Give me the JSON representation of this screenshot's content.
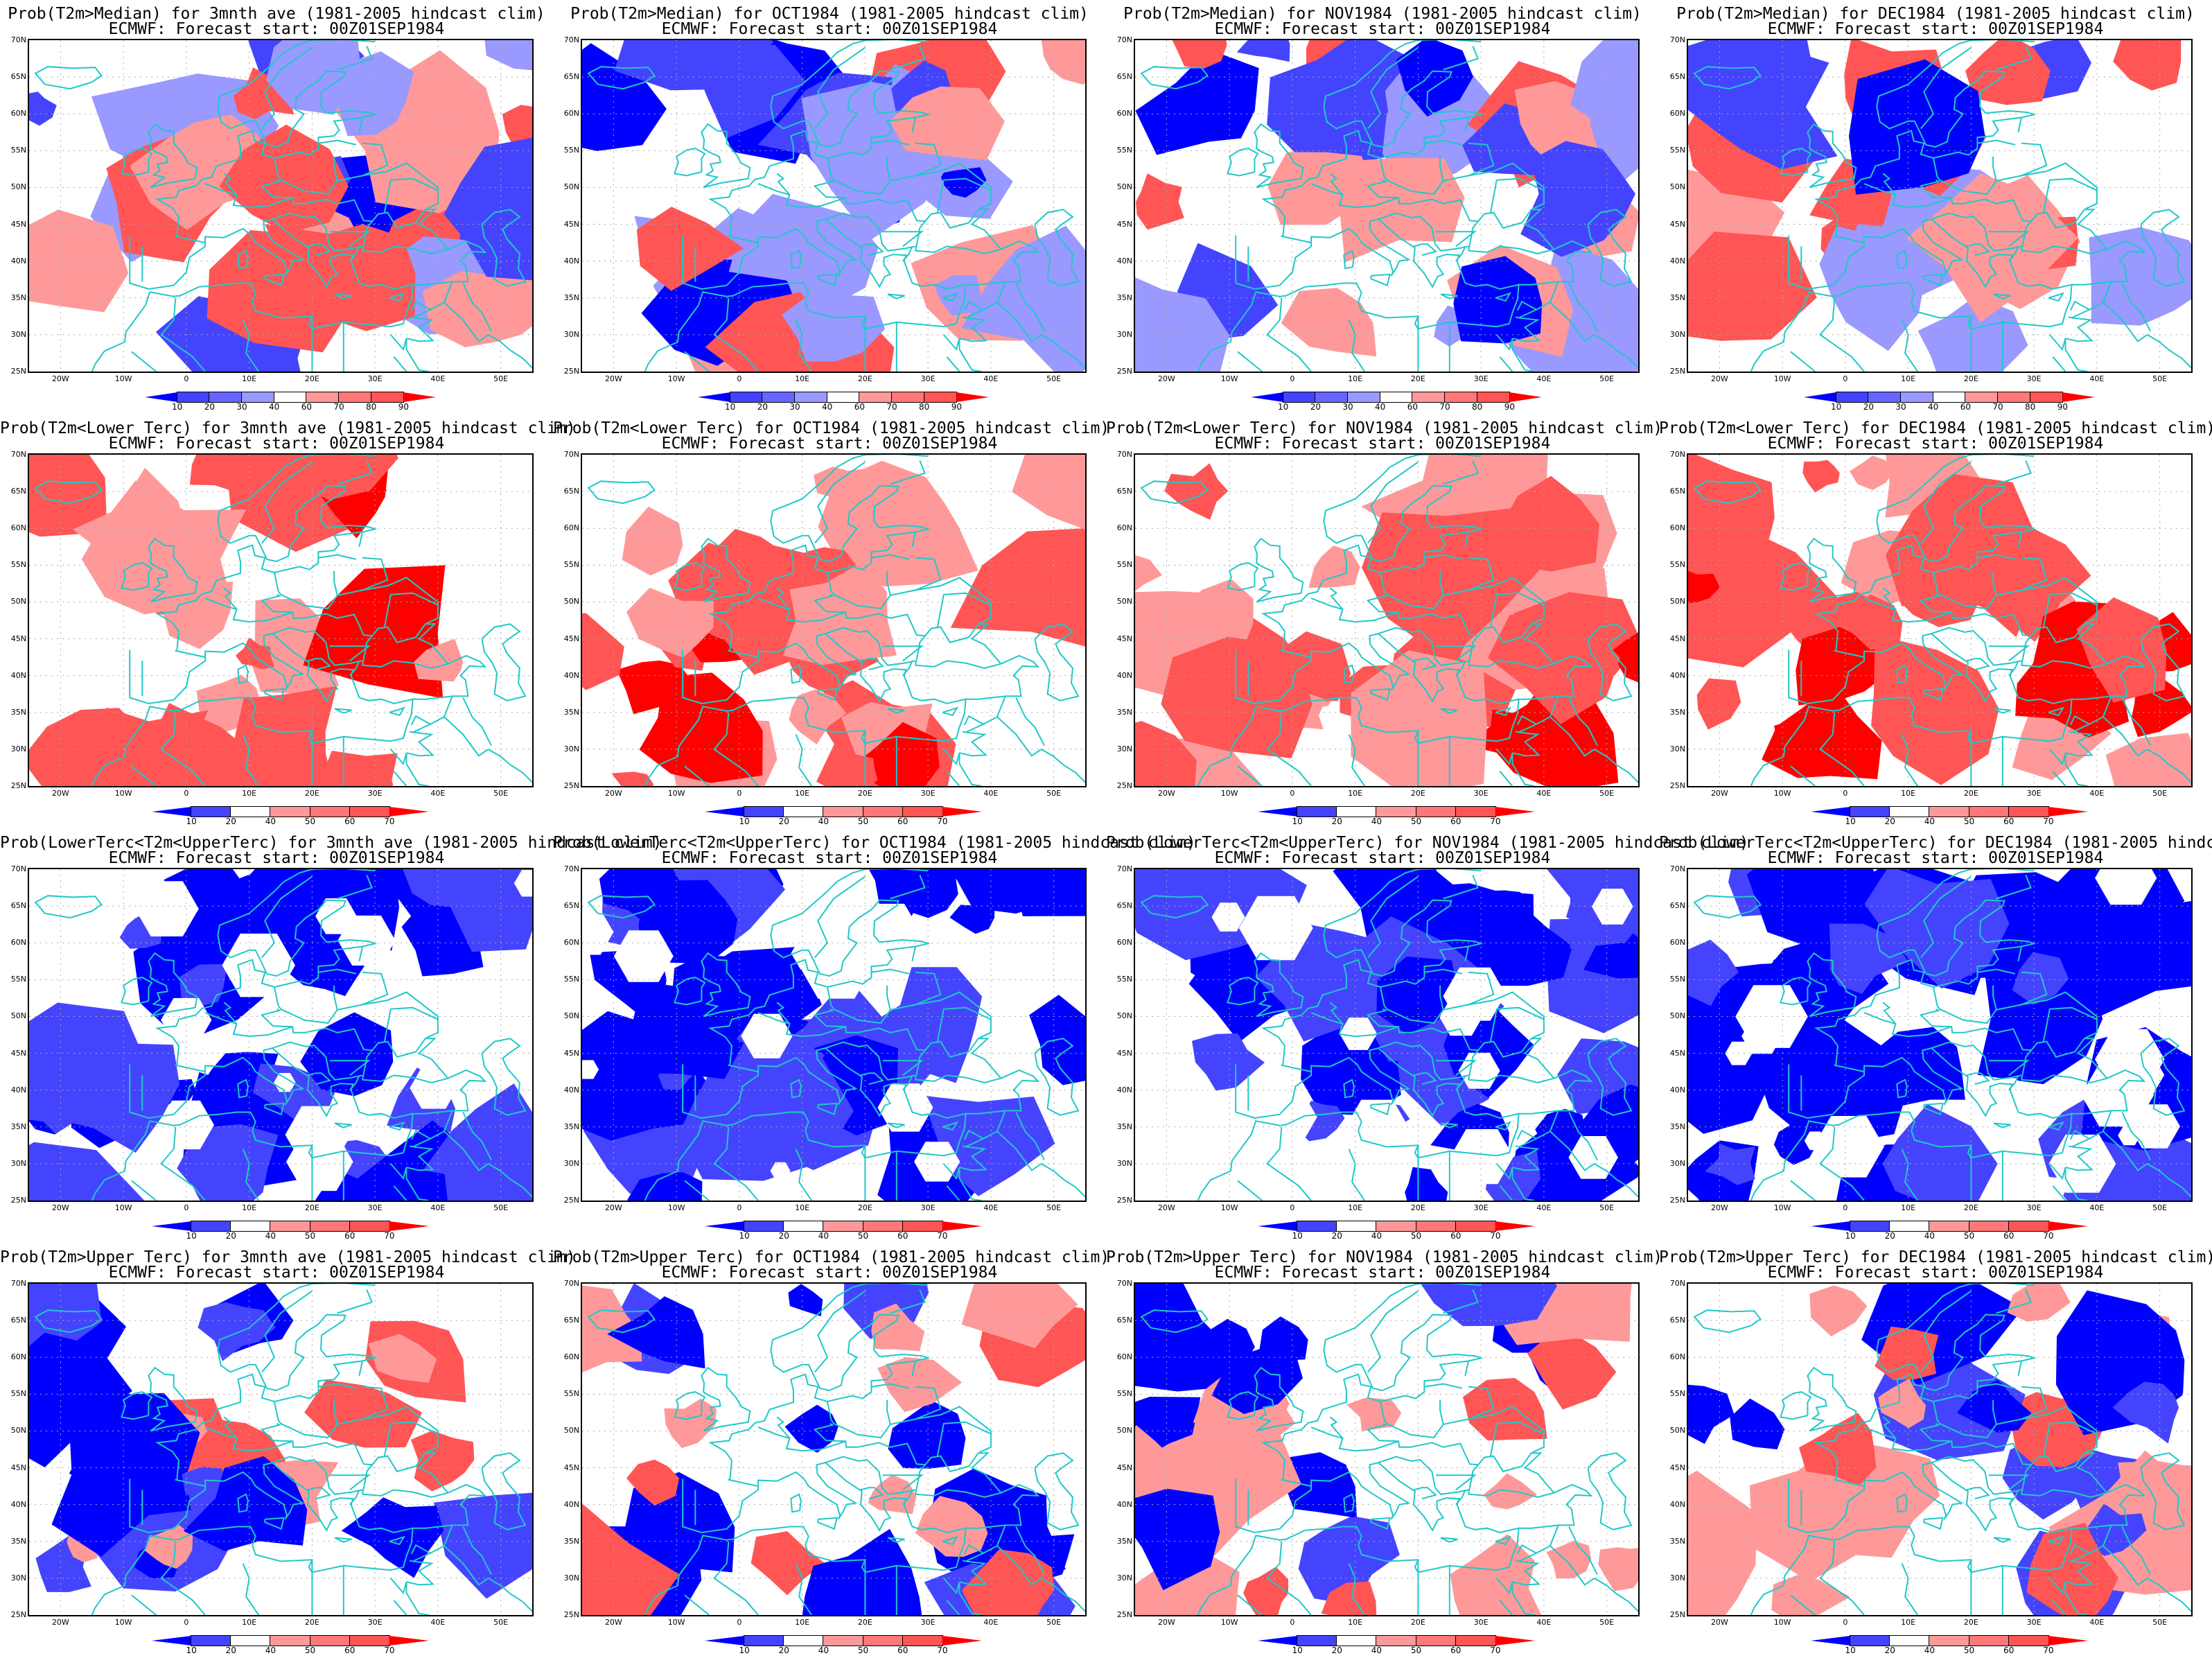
{
  "map_data": {
    "region": "Europe / North Atlantic / Mediterranean",
    "lon_range": [
      -25,
      55
    ],
    "lat_range": [
      25,
      70
    ],
    "y_ticks": [
      "70N",
      "65N",
      "60N",
      "55N",
      "50N",
      "45N",
      "40N",
      "35N",
      "30N",
      "25N"
    ],
    "x_ticks": [
      "20W",
      "10W",
      "0",
      "10E",
      "20E",
      "30E",
      "40E",
      "50E"
    ],
    "coastline_color": "#20c8c8",
    "palette": {
      "blue3": "#0000ff",
      "blue2": "#4444ff",
      "blue1": "#9999ff",
      "red1": "#ff9999",
      "red2": "#ff5555",
      "red3": "#ff0000"
    },
    "legend_median": [
      "10",
      "20",
      "30",
      "40",
      "60",
      "70",
      "80",
      "90"
    ],
    "legend_terc": [
      "10",
      "20",
      "40",
      "50",
      "60",
      "70"
    ]
  },
  "panels": [
    {
      "title": "Prob(T2m>Median) for 3mnth ave (1981-2005 hindcast clim)",
      "subtitle": "ECMWF: Forecast start: 00Z01SEP1984",
      "kind": "median",
      "tone": "blue"
    },
    {
      "title": "Prob(T2m>Median) for OCT1984 (1981-2005 hindcast clim)",
      "subtitle": "ECMWF: Forecast start: 00Z01SEP1984",
      "kind": "median",
      "tone": "blue"
    },
    {
      "title": "Prob(T2m>Median) for NOV1984 (1981-2005 hindcast clim)",
      "subtitle": "ECMWF: Forecast start: 00Z01SEP1984",
      "kind": "median",
      "tone": "blue"
    },
    {
      "title": "Prob(T2m>Median) for DEC1984 (1981-2005 hindcast clim)",
      "subtitle": "ECMWF: Forecast start: 00Z01SEP1984",
      "kind": "median",
      "tone": "blue"
    },
    {
      "title": "Prob(T2m<Lower Terc) for 3mnth ave (1981-2005 hindcast clim)",
      "subtitle": "ECMWF: Forecast start: 00Z01SEP1984",
      "kind": "terc",
      "tone": "red"
    },
    {
      "title": "Prob(T2m<Lower Terc) for OCT1984 (1981-2005 hindcast clim)",
      "subtitle": "ECMWF: Forecast start: 00Z01SEP1984",
      "kind": "terc",
      "tone": "red"
    },
    {
      "title": "Prob(T2m<Lower Terc) for NOV1984 (1981-2005 hindcast clim)",
      "subtitle": "ECMWF: Forecast start: 00Z01SEP1984",
      "kind": "terc",
      "tone": "red"
    },
    {
      "title": "Prob(T2m<Lower Terc) for DEC1984 (1981-2005 hindcast clim)",
      "subtitle": "ECMWF: Forecast start: 00Z01SEP1984",
      "kind": "terc",
      "tone": "red"
    },
    {
      "title": "Prob(LowerTerc<T2m<UpperTerc) for 3mnth ave (1981-2005 hindcast clim)",
      "subtitle": "ECMWF: Forecast start: 00Z01SEP1984",
      "kind": "terc",
      "tone": "deepblue"
    },
    {
      "title": "Prob(LowerTerc<T2m<UpperTerc) for OCT1984 (1981-2005 hindcast clim)",
      "subtitle": "ECMWF: Forecast start: 00Z01SEP1984",
      "kind": "terc",
      "tone": "deepblue"
    },
    {
      "title": "Prob(LowerTerc<T2m<UpperTerc) for NOV1984 (1981-2005 hindcast clim)",
      "subtitle": "ECMWF: Forecast start: 00Z01SEP1984",
      "kind": "terc",
      "tone": "deepblue"
    },
    {
      "title": "Prob(LowerTerc<T2m<UpperTerc) for DEC1984 (1981-2005 hindcast clim)",
      "subtitle": "ECMWF: Forecast start: 00Z01SEP1984",
      "kind": "terc",
      "tone": "deepblue"
    },
    {
      "title": "Prob(T2m>Upper Terc) for 3mnth ave (1981-2005 hindcast clim)",
      "subtitle": "ECMWF: Forecast start: 00Z01SEP1984",
      "kind": "terc",
      "tone": "mixed"
    },
    {
      "title": "Prob(T2m>Upper Terc) for OCT1984 (1981-2005 hindcast clim)",
      "subtitle": "ECMWF: Forecast start: 00Z01SEP1984",
      "kind": "terc",
      "tone": "mixed"
    },
    {
      "title": "Prob(T2m>Upper Terc) for NOV1984 (1981-2005 hindcast clim)",
      "subtitle": "ECMWF: Forecast start: 00Z01SEP1984",
      "kind": "terc",
      "tone": "mixed"
    },
    {
      "title": "Prob(T2m>Upper Terc) for DEC1984 (1981-2005 hindcast clim)",
      "subtitle": "ECMWF: Forecast start: 00Z01SEP1984",
      "kind": "terc",
      "tone": "mixed"
    }
  ]
}
